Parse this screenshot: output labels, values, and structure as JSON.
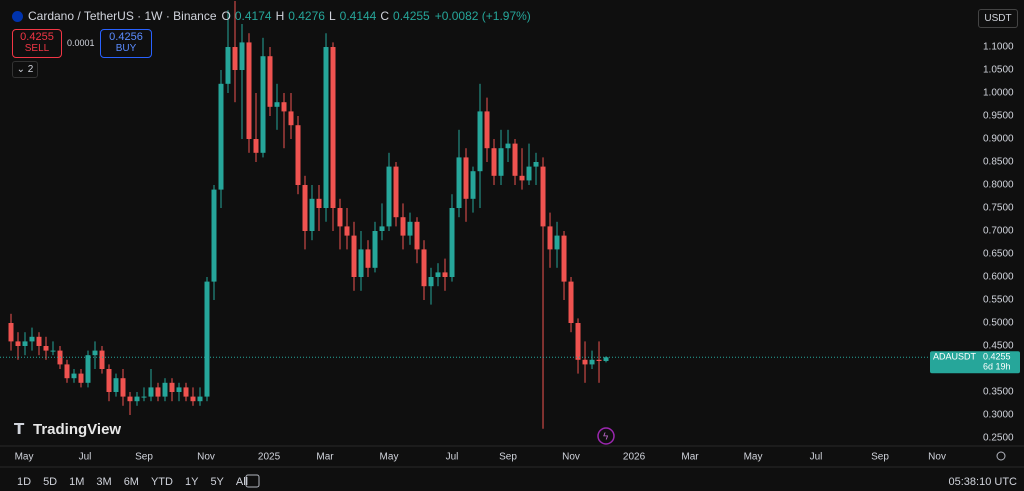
{
  "chart_data": {
    "type": "candlestick",
    "colors": {
      "up": "#26a69a",
      "down": "#ef5350"
    },
    "open": [
      0.5,
      0.46,
      0.45,
      0.46,
      0.47,
      0.45,
      0.44,
      0.44,
      0.41,
      0.38,
      0.39,
      0.37,
      0.43,
      0.44,
      0.4,
      0.35,
      0.38,
      0.34,
      0.33,
      0.34,
      0.34,
      0.36,
      0.34,
      0.37,
      0.35,
      0.36,
      0.34,
      0.33,
      0.34,
      0.59,
      0.79,
      1.02,
      1.1,
      1.05,
      1.11,
      0.9,
      0.87,
      1.08,
      0.97,
      0.98,
      0.96,
      0.93,
      0.8,
      0.7,
      0.77,
      0.75,
      1.1,
      0.75,
      0.71,
      0.69,
      0.6,
      0.66,
      0.62,
      0.7,
      0.71,
      0.84,
      0.73,
      0.69,
      0.72,
      0.66,
      0.58,
      0.6,
      0.61,
      0.6,
      0.75,
      0.86,
      0.77,
      0.83,
      0.96,
      0.88,
      0.82,
      0.88,
      0.89,
      0.82,
      0.81,
      0.84,
      0.84,
      0.71,
      0.66,
      0.69,
      0.59,
      0.5,
      0.42,
      0.41,
      0.42,
      0.4174
    ],
    "high": [
      0.52,
      0.48,
      0.48,
      0.49,
      0.48,
      0.47,
      0.46,
      0.45,
      0.42,
      0.4,
      0.4,
      0.44,
      0.46,
      0.45,
      0.41,
      0.39,
      0.4,
      0.35,
      0.35,
      0.36,
      0.4,
      0.37,
      0.38,
      0.38,
      0.37,
      0.37,
      0.36,
      0.36,
      0.6,
      0.8,
      1.05,
      1.18,
      1.2,
      1.15,
      1.13,
      1.0,
      1.12,
      1.1,
      1.02,
      1.0,
      1.0,
      0.95,
      0.82,
      0.8,
      0.8,
      1.13,
      1.11,
      0.77,
      0.75,
      0.72,
      0.7,
      0.68,
      0.72,
      0.76,
      0.87,
      0.85,
      0.76,
      0.74,
      0.73,
      0.68,
      0.62,
      0.63,
      0.64,
      0.78,
      0.92,
      0.88,
      0.84,
      1.02,
      0.99,
      0.9,
      0.92,
      0.92,
      0.9,
      0.88,
      0.89,
      0.87,
      0.86,
      0.74,
      0.72,
      0.7,
      0.6,
      0.51,
      0.46,
      0.44,
      0.46,
      0.4276
    ],
    "low": [
      0.44,
      0.42,
      0.43,
      0.44,
      0.43,
      0.42,
      0.43,
      0.4,
      0.37,
      0.37,
      0.36,
      0.36,
      0.4,
      0.39,
      0.33,
      0.34,
      0.32,
      0.3,
      0.32,
      0.33,
      0.33,
      0.33,
      0.33,
      0.33,
      0.33,
      0.33,
      0.32,
      0.32,
      0.33,
      0.55,
      0.75,
      1.0,
      0.98,
      0.9,
      0.87,
      0.85,
      0.86,
      0.95,
      0.92,
      0.88,
      0.9,
      0.78,
      0.66,
      0.68,
      0.7,
      0.72,
      0.7,
      0.66,
      0.66,
      0.57,
      0.57,
      0.6,
      0.61,
      0.68,
      0.7,
      0.71,
      0.66,
      0.67,
      0.63,
      0.55,
      0.54,
      0.58,
      0.57,
      0.59,
      0.73,
      0.72,
      0.74,
      0.75,
      0.85,
      0.8,
      0.8,
      0.85,
      0.8,
      0.79,
      0.8,
      0.8,
      0.27,
      0.62,
      0.62,
      0.55,
      0.48,
      0.39,
      0.37,
      0.4,
      0.37,
      0.4144
    ],
    "close": [
      0.46,
      0.45,
      0.46,
      0.47,
      0.45,
      0.44,
      0.44,
      0.41,
      0.38,
      0.39,
      0.37,
      0.43,
      0.44,
      0.4,
      0.35,
      0.38,
      0.34,
      0.33,
      0.34,
      0.34,
      0.36,
      0.34,
      0.37,
      0.35,
      0.36,
      0.34,
      0.33,
      0.34,
      0.59,
      0.79,
      1.02,
      1.1,
      1.05,
      1.11,
      0.9,
      0.87,
      1.08,
      0.97,
      0.98,
      0.96,
      0.93,
      0.8,
      0.7,
      0.77,
      0.75,
      1.1,
      0.75,
      0.71,
      0.69,
      0.6,
      0.66,
      0.62,
      0.7,
      0.71,
      0.84,
      0.73,
      0.69,
      0.72,
      0.66,
      0.58,
      0.6,
      0.61,
      0.6,
      0.75,
      0.86,
      0.77,
      0.83,
      0.96,
      0.88,
      0.82,
      0.88,
      0.89,
      0.82,
      0.81,
      0.84,
      0.85,
      0.71,
      0.66,
      0.69,
      0.59,
      0.5,
      0.42,
      0.41,
      0.42,
      0.4174,
      0.4255
    ],
    "last_price": 0.4255,
    "xlim": [
      -1.571,
      137.71
    ],
    "xticks": [
      {
        "value": 1.86,
        "label": "May"
      },
      {
        "value": 10.57,
        "label": "Jul"
      },
      {
        "value": 19,
        "label": "Sep"
      },
      {
        "value": 27.86,
        "label": "Nov"
      },
      {
        "value": 36.86,
        "label": "2025"
      },
      {
        "value": 44.86,
        "label": "Mar"
      },
      {
        "value": 54,
        "label": "May"
      },
      {
        "value": 63,
        "label": "Jul"
      },
      {
        "value": 71,
        "label": "Sep"
      },
      {
        "value": 80,
        "label": "Nov"
      },
      {
        "value": 89,
        "label": "2026"
      },
      {
        "value": 97,
        "label": "Mar"
      },
      {
        "value": 106,
        "label": "May"
      },
      {
        "value": 115,
        "label": "Jul"
      },
      {
        "value": 124.14,
        "label": "Sep"
      },
      {
        "value": 132.29,
        "label": "Nov"
      }
    ],
    "ylim": [
      0.2326,
      1.2022
    ],
    "yticks": [
      {
        "value": 1.1,
        "label": "1.1000"
      },
      {
        "value": 1.05,
        "label": "1.0500"
      },
      {
        "value": 1.0,
        "label": "1.0000"
      },
      {
        "value": 0.95,
        "label": "0.9500"
      },
      {
        "value": 0.9,
        "label": "0.9000"
      },
      {
        "value": 0.85,
        "label": "0.8500"
      },
      {
        "value": 0.8,
        "label": "0.8000"
      },
      {
        "value": 0.75,
        "label": "0.7500"
      },
      {
        "value": 0.7,
        "label": "0.7000"
      },
      {
        "value": 0.65,
        "label": "0.6500"
      },
      {
        "value": 0.6,
        "label": "0.6000"
      },
      {
        "value": 0.55,
        "label": "0.5500"
      },
      {
        "value": 0.5,
        "label": "0.5000"
      },
      {
        "value": 0.45,
        "label": "0.4500"
      },
      {
        "value": 0.35,
        "label": "0.3500"
      },
      {
        "value": 0.3,
        "label": "0.3000"
      },
      {
        "value": 0.25,
        "label": "0.2500"
      }
    ]
  },
  "header": {
    "symbol": "Cardano / TetherUS · 1W · Binance",
    "ohlc": [
      {
        "key": "O",
        "value": "0.4174"
      },
      {
        "key": "H",
        "value": "0.4276"
      },
      {
        "key": "L",
        "value": "0.4144"
      },
      {
        "key": "C",
        "value": "0.4255"
      }
    ],
    "change": "+0.0082 (+1.97%)"
  },
  "trade": {
    "sell_price": "0.4255",
    "sell": "SELL",
    "spread": "0.0001",
    "buy_price": "0.4256",
    "buy": "BUY"
  },
  "indicators": "2",
  "currency": "USDT",
  "price_label": {
    "symbol": "ADAUSDT",
    "countdown": "6d 19h"
  },
  "logo": "TradingView",
  "ranges": [
    "1D",
    "5D",
    "1M",
    "3M",
    "6M",
    "YTD",
    "1Y",
    "5Y",
    "All"
  ],
  "clock": "05:38:10 UTC"
}
